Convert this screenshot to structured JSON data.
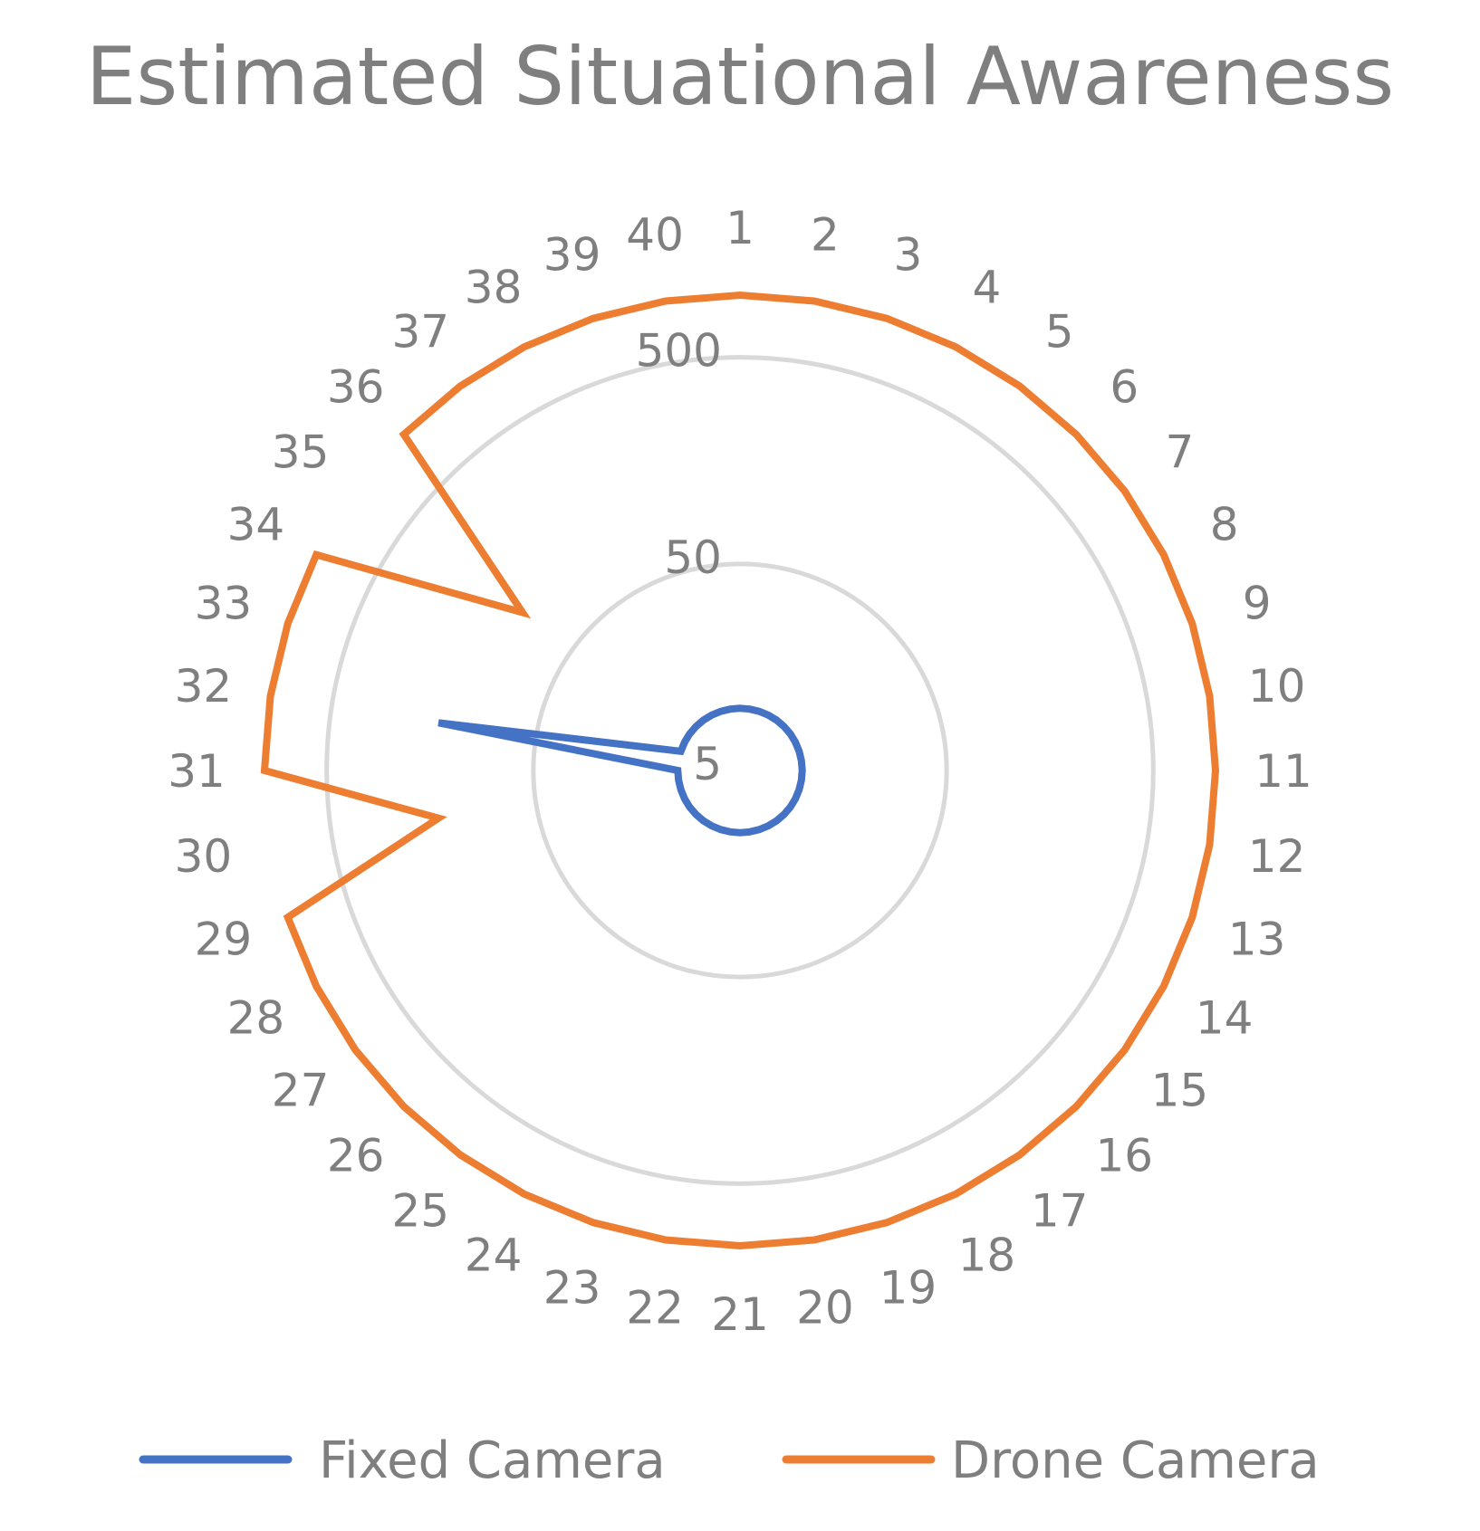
{
  "chart_data": {
    "type": "radar",
    "title": "Estimated Situational Awareness",
    "categories": [
      "1",
      "2",
      "3",
      "4",
      "5",
      "6",
      "7",
      "8",
      "9",
      "10",
      "11",
      "12",
      "13",
      "14",
      "15",
      "16",
      "17",
      "18",
      "19",
      "20",
      "21",
      "22",
      "23",
      "24",
      "25",
      "26",
      "27",
      "28",
      "29",
      "30",
      "31",
      "32",
      "33",
      "34",
      "35",
      "36",
      "37",
      "38",
      "39",
      "40"
    ],
    "radial_axis": {
      "scale": "log",
      "ticks": [
        "5",
        "50",
        "500"
      ],
      "range": [
        5,
        1000
      ],
      "grid": true
    },
    "legend_position": "bottom",
    "series": [
      {
        "name": "Fixed Camera",
        "color": "#4472c4",
        "values": [
          10,
          10,
          10,
          10,
          10,
          10,
          10,
          10,
          10,
          10,
          10,
          10,
          10,
          10,
          10,
          10,
          10,
          10,
          10,
          10,
          10,
          10,
          10,
          10,
          10,
          10,
          10,
          10,
          10,
          10,
          10,
          150,
          10,
          10,
          10,
          10,
          10,
          10,
          10,
          10
        ]
      },
      {
        "name": "Drone Camera",
        "color": "#ed7d31",
        "values": [
          1000,
          1000,
          1000,
          1000,
          1000,
          1000,
          1000,
          1000,
          1000,
          1000,
          1000,
          1000,
          1000,
          1000,
          1000,
          1000,
          1000,
          1000,
          1000,
          1000,
          1000,
          1000,
          1000,
          1000,
          1000,
          1000,
          1000,
          1000,
          1000,
          150,
          1000,
          1000,
          1000,
          1000,
          100,
          1000,
          1000,
          1000,
          1000,
          1000
        ]
      }
    ]
  }
}
